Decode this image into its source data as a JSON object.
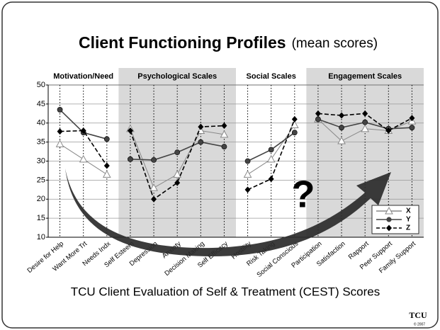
{
  "chart_data": {
    "type": "line",
    "title": "Client Functioning Profiles",
    "subtitle": "(mean scores)",
    "x_label": "TCU Client Evaluation of Self & Treatment (CEST) Scores",
    "groups": [
      {
        "label": "Motivation/Need",
        "shaded": false,
        "categories": [
          "Desire for Help",
          "Want More Trt",
          "Needs Indx"
        ]
      },
      {
        "label": "Psychological Scales",
        "shaded": true,
        "categories": [
          "Self Esteem",
          "Depression",
          "Anxiety",
          "Decision Making",
          "Self Efficacy"
        ]
      },
      {
        "label": "Social Scales",
        "shaded": false,
        "categories": [
          "Hostility",
          "Risk Taking",
          "Social Conscious"
        ]
      },
      {
        "label": "Engagement Scales",
        "shaded": true,
        "categories": [
          "Participation",
          "Satisfaction",
          "Rapport",
          "Peer Support",
          "Family Support"
        ]
      }
    ],
    "series": [
      {
        "name": "X",
        "color": "#888888",
        "marker": "triangle",
        "dash": false,
        "values": [
          34.5,
          30.5,
          26.5,
          38.5,
          23,
          26.5,
          38,
          37,
          26.5,
          30.5,
          39.5,
          41,
          35.3,
          38.5,
          38,
          40.5
        ]
      },
      {
        "name": "Y",
        "color": "#444444",
        "marker": "circle",
        "dash": false,
        "values": [
          43.5,
          37.5,
          35.8,
          30.5,
          30.3,
          32.3,
          35,
          33.8,
          30,
          33,
          37.5,
          41,
          38.8,
          40.2,
          38.5,
          38.8
        ]
      },
      {
        "name": "Z",
        "color": "#000000",
        "marker": "diamond",
        "dash": true,
        "values": [
          37.8,
          38,
          28.8,
          38,
          20,
          24.3,
          39,
          39.3,
          22.5,
          25.3,
          41,
          42.5,
          42,
          42.5,
          38,
          41.3
        ]
      }
    ],
    "ylim": [
      10,
      50
    ],
    "yticks": [
      10,
      15,
      20,
      25,
      30,
      35,
      40,
      45,
      50
    ],
    "grid": true,
    "annotation": "?",
    "logo": "TCU",
    "copyright": "© 2007"
  }
}
